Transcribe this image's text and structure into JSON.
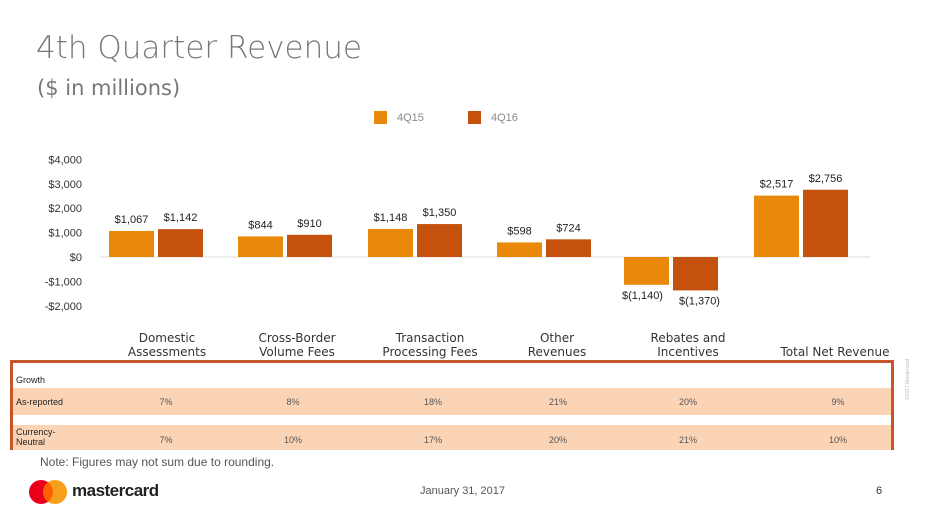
{
  "title": "4th Quarter Revenue",
  "subtitle": "($ in millions)",
  "colors": {
    "4Q15": "#e8890c",
    "4Q16": "#c4510e",
    "border": "#c4562a",
    "band": "#fbd4b6"
  },
  "chart_data": {
    "type": "bar",
    "categories": [
      "Domestic Assessments",
      "Cross-Border Volume Fees",
      "Transaction Processing Fees",
      "Other Revenues",
      "Rebates and Incentives",
      "Total Net Revenue"
    ],
    "category_lines": [
      [
        "Domestic",
        "Assessments"
      ],
      [
        "Cross-Border",
        "Volume Fees"
      ],
      [
        "Transaction",
        "Processing Fees"
      ],
      [
        "Other",
        "Revenues"
      ],
      [
        "Rebates and",
        "Incentives"
      ],
      [
        "",
        "Total Net Revenue"
      ]
    ],
    "series": [
      {
        "name": "4Q15",
        "values": [
          1067,
          844,
          1148,
          598,
          -1140,
          2517
        ],
        "labels": [
          "$1,067",
          "$844",
          "$1,148",
          "$598",
          "$(1,140)",
          "$2,517"
        ]
      },
      {
        "name": "4Q16",
        "values": [
          1142,
          910,
          1350,
          724,
          -1370,
          2756
        ],
        "labels": [
          "$1,142",
          "$910",
          "$1,350",
          "$724",
          "$(1,370)",
          "$2,756"
        ]
      }
    ],
    "yticks": [
      4000,
      3000,
      2000,
      1000,
      0,
      -1000,
      -2000
    ],
    "ytick_labels": [
      "$4,000",
      "$3,000",
      "$2,000",
      "$1,000",
      "$0",
      "-$1,000",
      "-$2,000"
    ],
    "ylim": [
      -2000,
      4000
    ],
    "legend": "top-center"
  },
  "table": {
    "header": "Growth",
    "rows": [
      {
        "label": "As-reported",
        "values": [
          "7%",
          "8%",
          "18%",
          "21%",
          "20%",
          "9%"
        ]
      },
      {
        "label": "Currency-\nNeutral",
        "values": [
          "7%",
          "10%",
          "17%",
          "20%",
          "21%",
          "10%"
        ]
      }
    ]
  },
  "note": "Note: Figures may not sum due to rounding.",
  "brand": "mastercard",
  "date": "January 31, 2017",
  "page": "6",
  "copyright": "©2017 Mastercard"
}
